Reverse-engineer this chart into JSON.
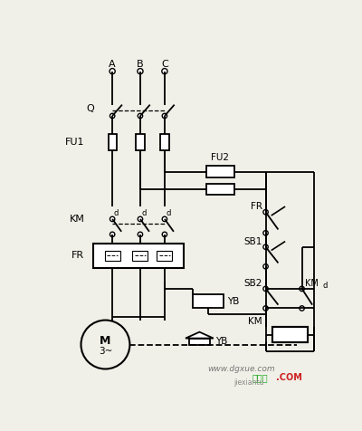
{
  "bg_color": "#f0f0e8",
  "line_color": "#000000",
  "watermark1": "www.dgxue.com",
  "watermark2": "接线图．COM",
  "watermark3": "jiexiantu",
  "figsize": [
    4.0,
    4.76
  ],
  "dpi": 100
}
